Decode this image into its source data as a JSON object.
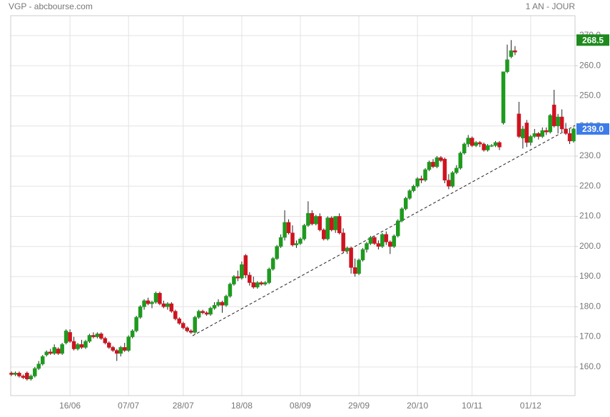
{
  "chart_data": {
    "type": "candlestick",
    "title": "VGP - abcbourse.com",
    "period": "1 AN - JOUR",
    "up_color": "#1e9a1e",
    "down_color": "#d0131f",
    "grid": true,
    "ylim": [
      150.5,
      276.6
    ],
    "yticks": [
      {
        "value": 160,
        "label": "160.0"
      },
      {
        "value": 170,
        "label": "170.0"
      },
      {
        "value": 180,
        "label": "180.0"
      },
      {
        "value": 190,
        "label": "190.0"
      },
      {
        "value": 200,
        "label": "200.0"
      },
      {
        "value": 210,
        "label": "210.0"
      },
      {
        "value": 220,
        "label": "220.0"
      },
      {
        "value": 230,
        "label": "230.0"
      },
      {
        "value": 240,
        "label": "240.0"
      },
      {
        "value": 250,
        "label": "250.0"
      },
      {
        "value": 260,
        "label": "260.0"
      },
      {
        "value": 270,
        "label": "270.0"
      }
    ],
    "high_badge": {
      "value": 268.5,
      "label": "268.5",
      "color": "#1e8a1e"
    },
    "last_badge": {
      "value": 239,
      "label": "239.0",
      "color": "#3d7be8"
    },
    "categories": [
      null,
      null,
      null,
      null,
      null,
      null,
      null,
      null,
      null,
      null,
      null,
      null,
      null,
      null,
      null,
      "16/06",
      null,
      null,
      null,
      null,
      null,
      null,
      null,
      null,
      null,
      null,
      null,
      null,
      null,
      null,
      "07/07",
      null,
      null,
      null,
      null,
      null,
      null,
      null,
      null,
      null,
      null,
      null,
      null,
      null,
      "28/07",
      null,
      null,
      null,
      null,
      null,
      null,
      null,
      null,
      null,
      null,
      null,
      null,
      null,
      null,
      "18/08",
      null,
      null,
      null,
      null,
      null,
      null,
      null,
      null,
      null,
      null,
      null,
      null,
      null,
      null,
      "08/09",
      null,
      null,
      null,
      null,
      null,
      null,
      null,
      null,
      null,
      null,
      null,
      null,
      null,
      null,
      "29/09",
      null,
      null,
      null,
      null,
      null,
      null,
      null,
      null,
      null,
      null,
      null,
      null,
      null,
      null,
      "20/10",
      null,
      null,
      null,
      null,
      null,
      null,
      null,
      null,
      null,
      null,
      null,
      null,
      null,
      "10/11",
      null,
      null,
      null,
      null,
      null,
      null,
      null,
      null,
      null,
      null,
      null,
      null,
      null,
      null,
      "01/12",
      null,
      null,
      null,
      null,
      null,
      null,
      null,
      null,
      null,
      null,
      null
    ],
    "candles": [
      {
        "o": 158,
        "h": 158.5,
        "l": 157,
        "c": 157.5
      },
      {
        "o": 157.5,
        "h": 158.5,
        "l": 157,
        "c": 158
      },
      {
        "o": 158,
        "h": 158.5,
        "l": 156.5,
        "c": 157
      },
      {
        "o": 157,
        "h": 157.5,
        "l": 156,
        "c": 156.5
      },
      {
        "o": 158,
        "h": 158.5,
        "l": 155.5,
        "c": 156
      },
      {
        "o": 156,
        "h": 157.5,
        "l": 155.5,
        "c": 157
      },
      {
        "o": 157,
        "h": 160,
        "l": 156.5,
        "c": 159.5
      },
      {
        "o": 159.5,
        "h": 162,
        "l": 159,
        "c": 161
      },
      {
        "o": 161,
        "h": 164,
        "l": 160.5,
        "c": 163.5
      },
      {
        "o": 164,
        "h": 165.5,
        "l": 163.5,
        "c": 165
      },
      {
        "o": 165,
        "h": 166,
        "l": 164,
        "c": 164.5
      },
      {
        "o": 164.5,
        "h": 167.5,
        "l": 164,
        "c": 166.5
      },
      {
        "o": 166,
        "h": 166.5,
        "l": 164,
        "c": 164.5
      },
      {
        "o": 164.5,
        "h": 168,
        "l": 164,
        "c": 167.5
      },
      {
        "o": 168,
        "h": 172.5,
        "l": 167.5,
        "c": 172
      },
      {
        "o": 171.5,
        "h": 172.5,
        "l": 168,
        "c": 168.5
      },
      {
        "o": 168.5,
        "h": 170,
        "l": 165.5,
        "c": 166
      },
      {
        "o": 166,
        "h": 168,
        "l": 165.5,
        "c": 167.5
      },
      {
        "o": 167.5,
        "h": 169,
        "l": 166,
        "c": 166.5
      },
      {
        "o": 166.5,
        "h": 169,
        "l": 166,
        "c": 168.5
      },
      {
        "o": 168.5,
        "h": 171,
        "l": 168,
        "c": 170.5
      },
      {
        "o": 170.5,
        "h": 171.5,
        "l": 169.5,
        "c": 170
      },
      {
        "o": 170,
        "h": 171.5,
        "l": 169.5,
        "c": 171
      },
      {
        "o": 171,
        "h": 171.5,
        "l": 169,
        "c": 169.5
      },
      {
        "o": 169.5,
        "h": 170,
        "l": 167.5,
        "c": 168
      },
      {
        "o": 168,
        "h": 168.5,
        "l": 166,
        "c": 166.5
      },
      {
        "o": 166.5,
        "h": 167,
        "l": 165,
        "c": 165.5
      },
      {
        "o": 165.5,
        "h": 166,
        "l": 162,
        "c": 164.5
      },
      {
        "o": 164.5,
        "h": 167,
        "l": 163.5,
        "c": 166.5
      },
      {
        "o": 166.5,
        "h": 168,
        "l": 165,
        "c": 165.5
      },
      {
        "o": 165.5,
        "h": 170.5,
        "l": 165,
        "c": 170
      },
      {
        "o": 170,
        "h": 172.5,
        "l": 169.5,
        "c": 172
      },
      {
        "o": 172,
        "h": 177,
        "l": 171.5,
        "c": 176.5
      },
      {
        "o": 176.5,
        "h": 180.5,
        "l": 176,
        "c": 180
      },
      {
        "o": 180,
        "h": 182.5,
        "l": 179,
        "c": 182
      },
      {
        "o": 182,
        "h": 183,
        "l": 180.5,
        "c": 181
      },
      {
        "o": 181,
        "h": 182,
        "l": 179.5,
        "c": 181.5
      },
      {
        "o": 181.5,
        "h": 185,
        "l": 181,
        "c": 184.5
      },
      {
        "o": 184.5,
        "h": 185,
        "l": 180.5,
        "c": 181
      },
      {
        "o": 181,
        "h": 182,
        "l": 179.5,
        "c": 180
      },
      {
        "o": 180,
        "h": 181.5,
        "l": 179,
        "c": 181
      },
      {
        "o": 181,
        "h": 181.5,
        "l": 178,
        "c": 178.5
      },
      {
        "o": 178.5,
        "h": 179,
        "l": 175.5,
        "c": 176
      },
      {
        "o": 176,
        "h": 176.5,
        "l": 174,
        "c": 174.5
      },
      {
        "o": 174.5,
        "h": 175,
        "l": 172.5,
        "c": 173
      },
      {
        "o": 173,
        "h": 173.5,
        "l": 171.5,
        "c": 172
      },
      {
        "o": 172,
        "h": 172.5,
        "l": 171,
        "c": 171.5
      },
      {
        "o": 171.5,
        "h": 177,
        "l": 171,
        "c": 176.5
      },
      {
        "o": 176.5,
        "h": 179,
        "l": 176,
        "c": 178.5
      },
      {
        "o": 178.5,
        "h": 179,
        "l": 177.5,
        "c": 178
      },
      {
        "o": 178,
        "h": 178.5,
        "l": 177,
        "c": 177.5
      },
      {
        "o": 177.5,
        "h": 180,
        "l": 177,
        "c": 179.5
      },
      {
        "o": 179.5,
        "h": 181.5,
        "l": 179,
        "c": 180.5
      },
      {
        "o": 180.5,
        "h": 182.5,
        "l": 180,
        "c": 181.5
      },
      {
        "o": 181.5,
        "h": 182,
        "l": 178,
        "c": 180.5
      },
      {
        "o": 180.5,
        "h": 184,
        "l": 180,
        "c": 183.5
      },
      {
        "o": 183.5,
        "h": 188,
        "l": 183,
        "c": 187.5
      },
      {
        "o": 187.5,
        "h": 190.5,
        "l": 187,
        "c": 190
      },
      {
        "o": 190,
        "h": 192,
        "l": 188.5,
        "c": 189.5
      },
      {
        "o": 189.5,
        "h": 195,
        "l": 189,
        "c": 194
      },
      {
        "o": 197,
        "h": 197.5,
        "l": 189.5,
        "c": 190.5
      },
      {
        "o": 190.5,
        "h": 191.5,
        "l": 187,
        "c": 188
      },
      {
        "o": 188,
        "h": 190,
        "l": 186,
        "c": 186.5
      },
      {
        "o": 186.5,
        "h": 188.5,
        "l": 186,
        "c": 188
      },
      {
        "o": 188,
        "h": 188.5,
        "l": 187,
        "c": 187.5
      },
      {
        "o": 187.5,
        "h": 188.5,
        "l": 187,
        "c": 188
      },
      {
        "o": 188,
        "h": 193,
        "l": 187.5,
        "c": 192.5
      },
      {
        "o": 192.5,
        "h": 196.5,
        "l": 192,
        "c": 196
      },
      {
        "o": 196,
        "h": 200.5,
        "l": 195.5,
        "c": 200
      },
      {
        "o": 200,
        "h": 204,
        "l": 199.5,
        "c": 203
      },
      {
        "o": 203,
        "h": 212,
        "l": 202,
        "c": 208
      },
      {
        "o": 208,
        "h": 209,
        "l": 204,
        "c": 204.5
      },
      {
        "o": 204.5,
        "h": 207,
        "l": 200,
        "c": 200.5
      },
      {
        "o": 200.5,
        "h": 202,
        "l": 199.5,
        "c": 201
      },
      {
        "o": 201,
        "h": 203,
        "l": 200.5,
        "c": 202.5
      },
      {
        "o": 202.5,
        "h": 207.5,
        "l": 202,
        "c": 207
      },
      {
        "o": 207,
        "h": 215,
        "l": 206.5,
        "c": 211
      },
      {
        "o": 211,
        "h": 212,
        "l": 207,
        "c": 207.5
      },
      {
        "o": 207.5,
        "h": 210.5,
        "l": 207,
        "c": 210
      },
      {
        "o": 210,
        "h": 211,
        "l": 205,
        "c": 205.5
      },
      {
        "o": 205.5,
        "h": 206,
        "l": 202,
        "c": 202.5
      },
      {
        "o": 202.5,
        "h": 210,
        "l": 202,
        "c": 209.5
      },
      {
        "o": 209.5,
        "h": 210,
        "l": 205,
        "c": 205.5
      },
      {
        "o": 205.5,
        "h": 210,
        "l": 204.5,
        "c": 210
      },
      {
        "o": 210,
        "h": 211,
        "l": 204,
        "c": 204.5
      },
      {
        "o": 204.5,
        "h": 206,
        "l": 198,
        "c": 198.5
      },
      {
        "o": 198.5,
        "h": 200,
        "l": 197.5,
        "c": 199.5
      },
      {
        "o": 199.5,
        "h": 200,
        "l": 191,
        "c": 193
      },
      {
        "o": 193,
        "h": 196,
        "l": 190,
        "c": 191
      },
      {
        "o": 191,
        "h": 196,
        "l": 190.5,
        "c": 195.5
      },
      {
        "o": 195.5,
        "h": 199.5,
        "l": 195,
        "c": 199
      },
      {
        "o": 199,
        "h": 201.5,
        "l": 198,
        "c": 201
      },
      {
        "o": 201,
        "h": 203.5,
        "l": 200.5,
        "c": 203
      },
      {
        "o": 203,
        "h": 203.5,
        "l": 200.5,
        "c": 201
      },
      {
        "o": 201,
        "h": 202,
        "l": 199,
        "c": 200
      },
      {
        "o": 200,
        "h": 204.5,
        "l": 199.5,
        "c": 204
      },
      {
        "o": 204,
        "h": 205,
        "l": 200.5,
        "c": 201.5
      },
      {
        "o": 201.5,
        "h": 202,
        "l": 197.5,
        "c": 200
      },
      {
        "o": 200,
        "h": 204,
        "l": 199.5,
        "c": 203.5
      },
      {
        "o": 203.5,
        "h": 209,
        "l": 203,
        "c": 208.5
      },
      {
        "o": 208.5,
        "h": 213,
        "l": 208,
        "c": 212.5
      },
      {
        "o": 212.5,
        "h": 216.5,
        "l": 212,
        "c": 216
      },
      {
        "o": 216,
        "h": 219,
        "l": 215.5,
        "c": 218.5
      },
      {
        "o": 218.5,
        "h": 220.5,
        "l": 218,
        "c": 220
      },
      {
        "o": 220,
        "h": 223,
        "l": 219.5,
        "c": 222.5
      },
      {
        "o": 222.5,
        "h": 223.5,
        "l": 221,
        "c": 222
      },
      {
        "o": 222,
        "h": 226,
        "l": 221.5,
        "c": 225.5
      },
      {
        "o": 225.5,
        "h": 228.5,
        "l": 225,
        "c": 228
      },
      {
        "o": 228,
        "h": 229,
        "l": 226,
        "c": 226.5
      },
      {
        "o": 226.5,
        "h": 230,
        "l": 226,
        "c": 229.5
      },
      {
        "o": 229.5,
        "h": 230,
        "l": 228,
        "c": 228.5
      },
      {
        "o": 229,
        "h": 229.5,
        "l": 221,
        "c": 222
      },
      {
        "o": 222,
        "h": 224,
        "l": 219,
        "c": 220
      },
      {
        "o": 220,
        "h": 225,
        "l": 219.5,
        "c": 224.5
      },
      {
        "o": 224.5,
        "h": 227,
        "l": 224,
        "c": 226
      },
      {
        "o": 226,
        "h": 231.5,
        "l": 225.5,
        "c": 231
      },
      {
        "o": 231,
        "h": 234.5,
        "l": 230.5,
        "c": 234
      },
      {
        "o": 234,
        "h": 237,
        "l": 233,
        "c": 236
      },
      {
        "o": 236,
        "h": 236.5,
        "l": 233,
        "c": 233.5
      },
      {
        "o": 233.5,
        "h": 235,
        "l": 233,
        "c": 234.5
      },
      {
        "o": 234.5,
        "h": 235,
        "l": 233,
        "c": 234
      },
      {
        "o": 234,
        "h": 234.5,
        "l": 231.5,
        "c": 232
      },
      {
        "o": 232,
        "h": 234,
        "l": 231.5,
        "c": 233.5
      },
      {
        "o": 233.5,
        "h": 234,
        "l": 233,
        "c": 233.5
      },
      {
        "o": 233.5,
        "h": 235,
        "l": 233,
        "c": 234.5
      },
      {
        "o": 234.5,
        "h": 235,
        "l": 232,
        "c": 233
      },
      {
        "o": 241,
        "h": 258,
        "l": 240.5,
        "c": 258
      },
      {
        "o": 258,
        "h": 267,
        "l": 257.5,
        "c": 262
      },
      {
        "o": 263,
        "h": 268.5,
        "l": 262.5,
        "c": 265
      },
      {
        "o": 265,
        "h": 266.5,
        "l": 263.5,
        "c": 264.5
      },
      {
        "o": 244,
        "h": 248,
        "l": 236,
        "c": 236.5
      },
      {
        "o": 236,
        "h": 240,
        "l": 232.5,
        "c": 239
      },
      {
        "o": 241,
        "h": 242,
        "l": 233,
        "c": 234.5
      },
      {
        "o": 234.5,
        "h": 237,
        "l": 233.5,
        "c": 236.5
      },
      {
        "o": 236.5,
        "h": 239,
        "l": 236,
        "c": 237.5
      },
      {
        "o": 237.5,
        "h": 238,
        "l": 235.5,
        "c": 236.5
      },
      {
        "o": 236.5,
        "h": 239.5,
        "l": 236,
        "c": 238.5
      },
      {
        "o": 238.5,
        "h": 239.5,
        "l": 237,
        "c": 238
      },
      {
        "o": 238,
        "h": 244,
        "l": 237.5,
        "c": 243.5
      },
      {
        "o": 247,
        "h": 252,
        "l": 239.5,
        "c": 240
      },
      {
        "o": 240,
        "h": 244,
        "l": 237.5,
        "c": 243
      },
      {
        "o": 243,
        "h": 245.5,
        "l": 238,
        "c": 239
      },
      {
        "o": 239,
        "h": 241,
        "l": 237,
        "c": 237.5
      },
      {
        "o": 237.5,
        "h": 239,
        "l": 234,
        "c": 235
      },
      {
        "o": 235,
        "h": 239.5,
        "l": 234.5,
        "c": 239
      }
    ]
  }
}
